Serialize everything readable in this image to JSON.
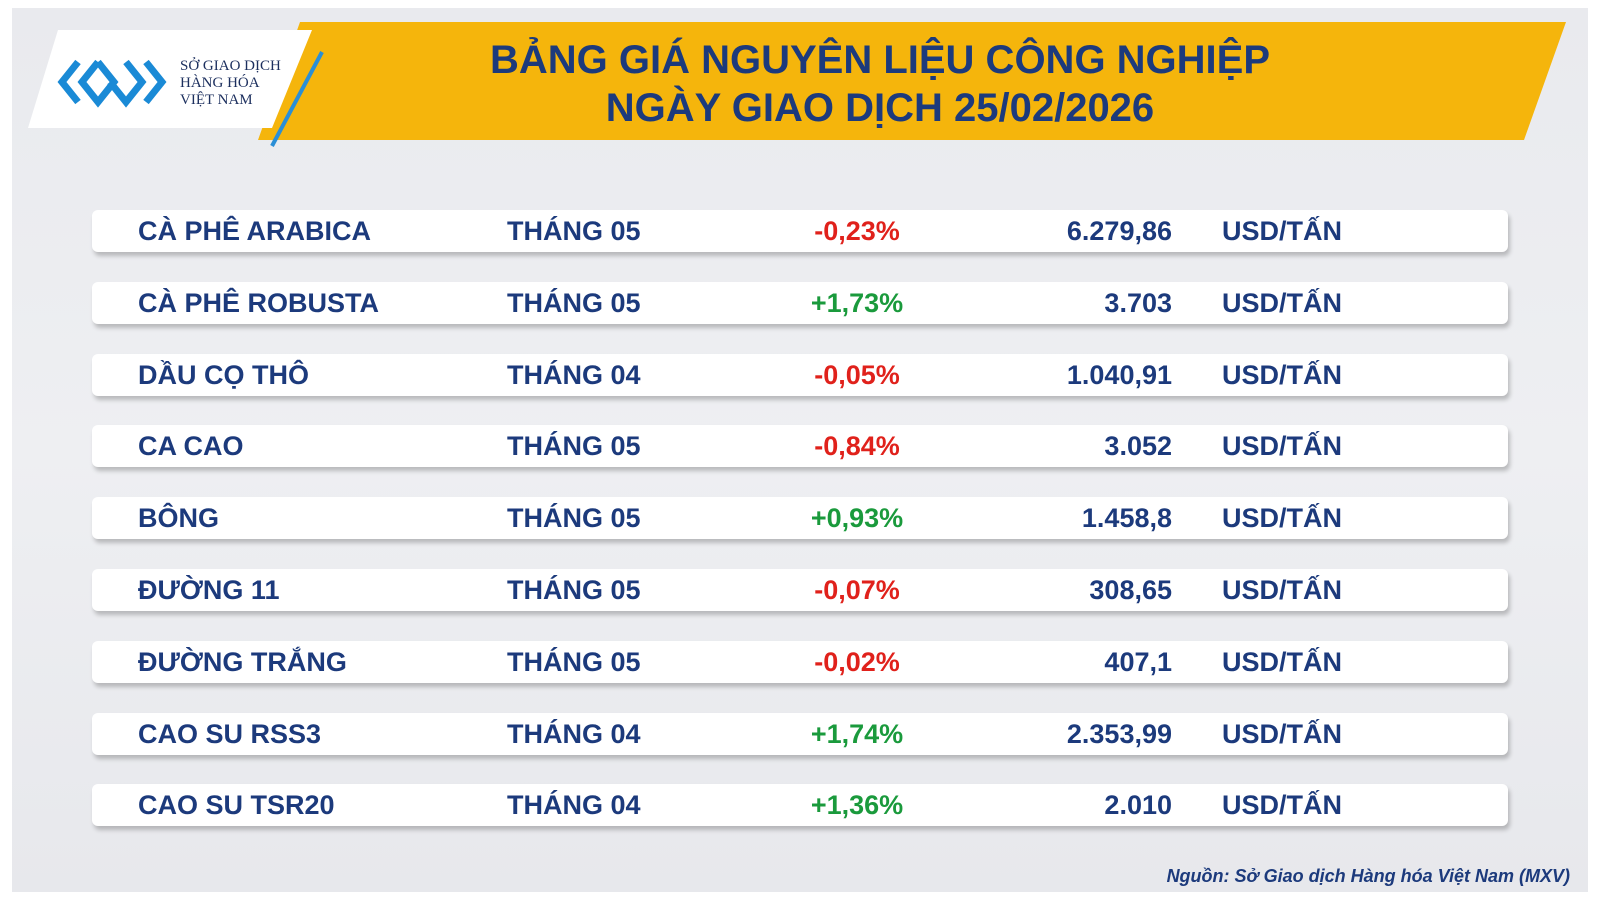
{
  "header": {
    "logo": [
      "SỞ GIAO DỊCH",
      "HÀNG HÓA",
      "VIỆT NAM"
    ],
    "title": [
      "BẢNG GIÁ NGUYÊN LIỆU CÔNG NGHIỆP",
      "NGÀY GIAO DỊCH 25/02/2026"
    ]
  },
  "table": {
    "rows": [
      [
        "CÀ PHÊ ARABICA",
        "THÁNG 05",
        "-0,23%",
        "6.279,86",
        "USD/TẤN"
      ],
      [
        "CÀ PHÊ ROBUSTA",
        "THÁNG 05",
        "+1,73%",
        "3.703",
        "USD/TẤN"
      ],
      [
        "DẦU CỌ THÔ",
        "THÁNG 04",
        "-0,05%",
        "1.040,91",
        "USD/TẤN"
      ],
      [
        "CA CAO",
        "THÁNG 05",
        "-0,84%",
        "3.052",
        "USD/TẤN"
      ],
      [
        "BÔNG",
        "THÁNG 05",
        "+0,93%",
        "1.458,8",
        "USD/TẤN"
      ],
      [
        "ĐƯỜNG 11",
        "THÁNG 05",
        "-0,07%",
        "308,65",
        "USD/TẤN"
      ],
      [
        "ĐƯỜNG TRẮNG",
        "THÁNG 05",
        "-0,02%",
        "407,1",
        "USD/TẤN"
      ],
      [
        "CAO SU RSS3",
        "THÁNG 04",
        "+1,74%",
        "2.353,99",
        "USD/TẤN"
      ],
      [
        "CAO SU TSR20",
        "THÁNG 04",
        "+1,36%",
        "2.010",
        "USD/TẤN"
      ]
    ]
  },
  "source": "Nguồn: Sở Giao dịch Hàng hóa Việt Nam (MXV)"
}
